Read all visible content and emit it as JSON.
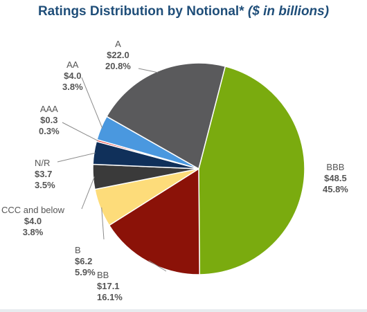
{
  "title": {
    "main": "Ratings Distribution by Notional*",
    "units": "($ in billions)"
  },
  "chart_data": {
    "type": "pie",
    "title": "Ratings Distribution by Notional* ($ in billions)",
    "slices": [
      {
        "label": "BBB",
        "amount": "$48.5",
        "percent": "45.8%",
        "value": 48.5,
        "pct": 45.8,
        "color": "#7aab0f"
      },
      {
        "label": "BB",
        "amount": "$17.1",
        "percent": "16.1%",
        "value": 17.1,
        "pct": 16.1,
        "color": "#8b1208"
      },
      {
        "label": "B",
        "amount": "$6.2",
        "percent": "5.9%",
        "value": 6.2,
        "pct": 5.9,
        "color": "#fddc7a"
      },
      {
        "label": "CCC and below",
        "amount": "$4.0",
        "percent": "3.8%",
        "value": 4.0,
        "pct": 3.8,
        "color": "#3a3a3a"
      },
      {
        "label": "N/R",
        "amount": "$3.7",
        "percent": "3.5%",
        "value": 3.7,
        "pct": 3.5,
        "color": "#10305a"
      },
      {
        "label": "AAA",
        "amount": "$0.3",
        "percent": "0.3%",
        "value": 0.3,
        "pct": 0.3,
        "color": "#e03030"
      },
      {
        "label": "AA",
        "amount": "$4.0",
        "percent": "3.8%",
        "value": 4.0,
        "pct": 3.8,
        "color": "#4a98df"
      },
      {
        "label": "A",
        "amount": "$22.0",
        "percent": "20.8%",
        "value": 22.0,
        "pct": 20.8,
        "color": "#5a5a5c"
      }
    ]
  }
}
